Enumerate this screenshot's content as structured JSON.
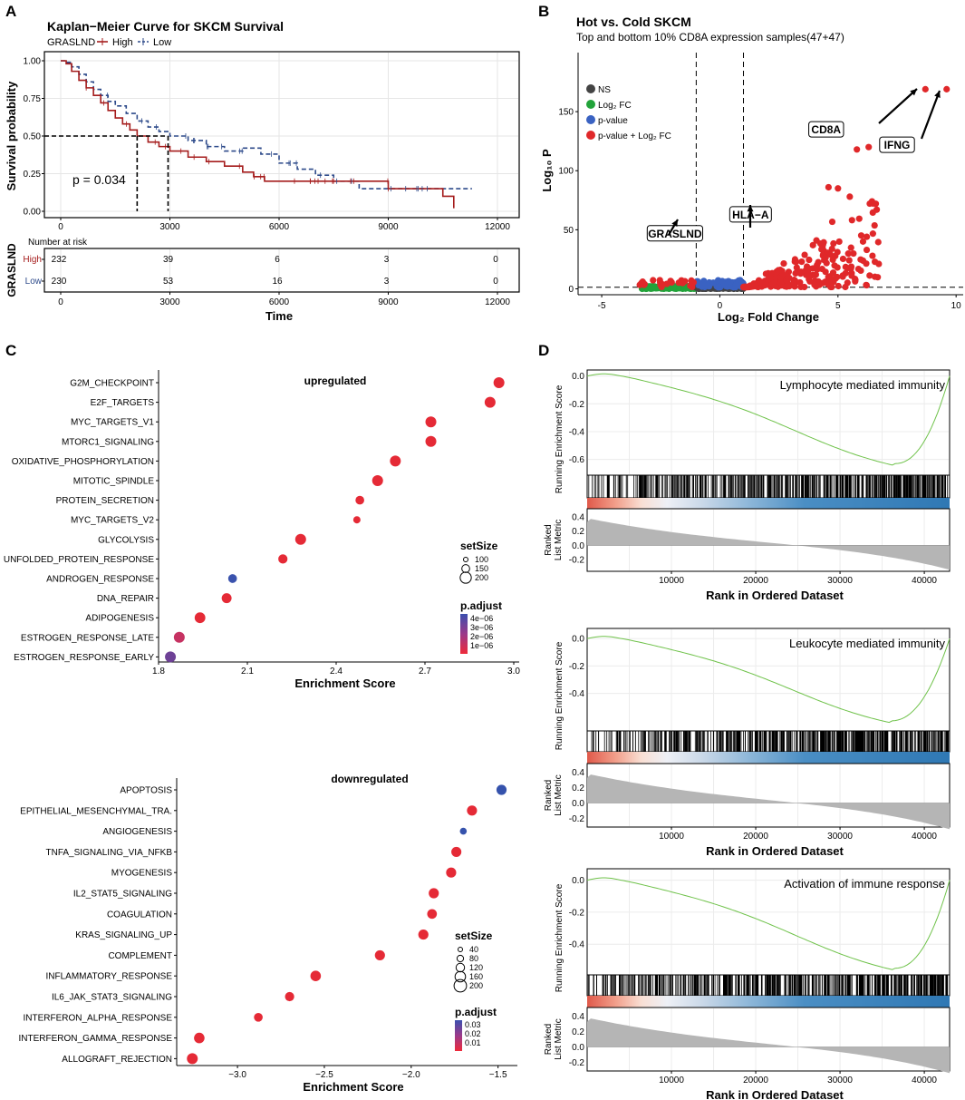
{
  "panel_labels": [
    "A",
    "B",
    "C",
    "D"
  ],
  "chart_data": [
    {
      "type": "line",
      "panel": "A",
      "title": "Kaplan−Meier Curve for SKCM Survival",
      "legend_title": "GRASLND",
      "legend": [
        "High",
        "Low"
      ],
      "xlabel": "Time",
      "ylabel": "Survival probability",
      "xlim": [
        0,
        12000
      ],
      "ylim": [
        0,
        1
      ],
      "xticks": [
        "0",
        "3000",
        "6000",
        "9000",
        "12000"
      ],
      "yticks": [
        "0.00",
        "0.25",
        "0.50",
        "0.75",
        "1.00"
      ],
      "pvalue_text": "p = 0.034",
      "median_survival": {
        "High": 2100,
        "Low": 2950
      },
      "colors": {
        "High": "#a51c1c",
        "Low": "#2d4a8a"
      },
      "series": [
        {
          "name": "High",
          "x": [
            0,
            150,
            300,
            500,
            700,
            900,
            1100,
            1300,
            1500,
            1700,
            1900,
            2100,
            2400,
            2700,
            3000,
            3500,
            4000,
            4500,
            5000,
            5300,
            5600,
            6000,
            6500,
            7000,
            7500,
            8000,
            9000,
            10000,
            10500,
            10500,
            10800
          ],
          "y": [
            1.0,
            0.98,
            0.93,
            0.87,
            0.82,
            0.77,
            0.72,
            0.67,
            0.62,
            0.58,
            0.54,
            0.5,
            0.46,
            0.43,
            0.4,
            0.36,
            0.33,
            0.3,
            0.26,
            0.23,
            0.2,
            0.2,
            0.2,
            0.2,
            0.2,
            0.2,
            0.15,
            0.15,
            0.15,
            0.1,
            0.02
          ]
        },
        {
          "name": "Low",
          "x": [
            0,
            150,
            300,
            500,
            700,
            900,
            1100,
            1300,
            1500,
            1800,
            2100,
            2400,
            2700,
            3000,
            3500,
            4000,
            4500,
            5000,
            5500,
            6000,
            6500,
            7000,
            7500,
            8000,
            8200,
            9000,
            10000,
            11000,
            11300
          ],
          "y": [
            1.0,
            0.99,
            0.96,
            0.91,
            0.86,
            0.81,
            0.77,
            0.73,
            0.7,
            0.65,
            0.6,
            0.56,
            0.53,
            0.5,
            0.47,
            0.43,
            0.4,
            0.42,
            0.38,
            0.32,
            0.28,
            0.24,
            0.2,
            0.2,
            0.15,
            0.15,
            0.15,
            0.15,
            0.15
          ]
        }
      ],
      "risk_table": {
        "title": "Number at risk",
        "group_label": "GRASLND",
        "rows": [
          {
            "name": "High",
            "values": [
              "232",
              "39",
              "6",
              "3",
              "0"
            ]
          },
          {
            "name": "Low",
            "values": [
              "230",
              "53",
              "16",
              "3",
              "0"
            ]
          }
        ]
      }
    },
    {
      "type": "scatter",
      "panel": "B",
      "title": "Hot vs. Cold SKCM",
      "subtitle": "Top and bottom 10% CD8A expression samples(47+47)",
      "xlabel": "Log₂ Fold Change",
      "ylabel": "Log₁₀ P",
      "xlim": [
        -6,
        10.3
      ],
      "ylim": [
        -5,
        200
      ],
      "xticks": [
        "-5",
        "0",
        "5",
        "10"
      ],
      "yticks": [
        "0",
        "50",
        "100",
        "150"
      ],
      "cutoffs": {
        "fc": [
          -1,
          1
        ],
        "p": 1.3
      },
      "legend": [
        "NS",
        "Log₂ FC",
        "p-value",
        "p-value + Log₂ FC"
      ],
      "legend_colors": [
        "#444444",
        "#22a33a",
        "#3a62c2",
        "#e0282a"
      ],
      "annotations": [
        {
          "label": "CD8A",
          "x": 4.5,
          "y": 135,
          "arrow_to": [
            7.8,
            168
          ]
        },
        {
          "label": "IFNG",
          "x": 7.5,
          "y": 122,
          "arrow_to": [
            8.8,
            168
          ]
        },
        {
          "label": "HLA−A",
          "x": 1.3,
          "y": 63,
          "arrow_to": [
            1.3,
            50
          ]
        },
        {
          "label": "GRASLND",
          "x": -1.9,
          "y": 47,
          "arrow_to": [
            -1.4,
            38
          ]
        }
      ]
    },
    {
      "type": "scatter",
      "panel": "C",
      "title": "upregulated",
      "xlabel": "Enrichment Score",
      "xlim": [
        1.8,
        3.0
      ],
      "xticks": [
        "1.8",
        "2.1",
        "2.4",
        "2.7",
        "3.0"
      ],
      "categories": [
        "G2M_CHECKPOINT",
        "E2F_TARGETS",
        "MYC_TARGETS_V1",
        "MTORC1_SIGNALING",
        "OXIDATIVE_PHOSPHORYLATION",
        "MITOTIC_SPINDLE",
        "PROTEIN_SECRETION",
        "MYC_TARGETS_V2",
        "GLYCOLYSIS",
        "UNFOLDED_PROTEIN_RESPONSE",
        "ANDROGEN_RESPONSE",
        "DNA_REPAIR",
        "ADIPOGENESIS",
        "ESTROGEN_RESPONSE_LATE",
        "ESTROGEN_RESPONSE_EARLY"
      ],
      "values": [
        2.95,
        2.92,
        2.72,
        2.72,
        2.6,
        2.54,
        2.48,
        2.47,
        2.28,
        2.22,
        2.05,
        2.03,
        1.94,
        1.87,
        1.84
      ],
      "set_size": [
        200,
        200,
        200,
        200,
        200,
        200,
        100,
        50,
        200,
        120,
        100,
        150,
        190,
        200,
        200
      ],
      "p_adjust_color": [
        "#e52a36",
        "#e52a36",
        "#e52a36",
        "#e52a36",
        "#e52a36",
        "#e52a36",
        "#e52a36",
        "#e52a36",
        "#e52a36",
        "#e52a36",
        "#3a52ad",
        "#e52a36",
        "#e52a36",
        "#c63262",
        "#6e4196"
      ],
      "legend_size_title": "setSize",
      "legend_size_labels": [
        "100",
        "150",
        "200"
      ],
      "legend_color_title": "p.adjust",
      "legend_color_labels": [
        "4e−06",
        "3e−06",
        "2e−06",
        "1e−06"
      ]
    },
    {
      "type": "scatter",
      "panel": "C",
      "title": "downregulated",
      "xlabel": "Enrichment Score",
      "xlim": [
        -3.35,
        -1.42
      ],
      "xticks": [
        "−3.0",
        "−2.5",
        "−2.0",
        "−1.5"
      ],
      "categories": [
        "APOPTOSIS",
        "EPITHELIAL_MESENCHYMAL_TRA.",
        "ANGIOGENESIS",
        "TNFA_SIGNALING_VIA_NFKB",
        "MYOGENESIS",
        "IL2_STAT5_SIGNALING",
        "COAGULATION",
        "KRAS_SIGNALING_UP",
        "COMPLEMENT",
        "INFLAMMATORY_RESPONSE",
        "IL6_JAK_STAT3_SIGNALING",
        "INTERFERON_ALPHA_RESPONSE",
        "INTERFERON_GAMMA_RESPONSE",
        "ALLOGRAFT_REJECTION"
      ],
      "values": [
        -1.48,
        -1.65,
        -1.7,
        -1.74,
        -1.77,
        -1.87,
        -1.88,
        -1.93,
        -2.18,
        -2.55,
        -2.7,
        -2.88,
        -3.22,
        -3.26
      ],
      "set_size": [
        160,
        160,
        40,
        160,
        160,
        160,
        140,
        160,
        160,
        180,
        120,
        100,
        180,
        200
      ],
      "p_adjust_color": [
        "#3552ac",
        "#e52a36",
        "#3552ac",
        "#e52a36",
        "#e52a36",
        "#e52a36",
        "#e52a36",
        "#e52a36",
        "#e52a36",
        "#e52a36",
        "#e52a36",
        "#e52a36",
        "#e52a36",
        "#e52a36"
      ],
      "legend_size_title": "setSize",
      "legend_size_labels": [
        "40",
        "80",
        "120",
        "160",
        "200"
      ],
      "legend_color_title": "p.adjust",
      "legend_color_labels": [
        "0.03",
        "0.02",
        "0.01"
      ]
    },
    {
      "type": "line",
      "panel": "D",
      "title": "Lymphocyte mediated immunity",
      "ylabel": "Running Enrichment Score",
      "ylabel2": "Ranked List Metric",
      "xlabel": "Rank in Ordered Dataset",
      "xlim": [
        0,
        43000
      ],
      "ylim": [
        -0.7,
        0.03
      ],
      "yticks": [
        "0.0",
        "-0.2",
        "-0.4",
        "-0.6"
      ],
      "ytick_values": [
        0.0,
        -0.2,
        -0.4,
        -0.6
      ],
      "metric_ylim": [
        -0.35,
        0.5
      ],
      "metric_yticks": [
        "0.4",
        "0.2",
        "0.0",
        "-0.2"
      ],
      "xticks": [
        "10000",
        "20000",
        "30000",
        "40000"
      ],
      "min_es": -0.63,
      "min_rank": 36500
    },
    {
      "type": "line",
      "panel": "D",
      "title": "Leukocyte mediated immunity",
      "ylabel": "Running Enrichment Score",
      "ylabel2": "Ranked List Metric",
      "xlabel": "Rank in Ordered Dataset",
      "xlim": [
        0,
        43000
      ],
      "ylim": [
        -0.66,
        0.06
      ],
      "yticks": [
        "0.0",
        "-0.2",
        "-0.4"
      ],
      "ytick_values": [
        0.0,
        -0.2,
        -0.4
      ],
      "metric_ylim": [
        -0.3,
        0.5
      ],
      "metric_yticks": [
        "0.4",
        "0.2",
        "0.0",
        "-0.2"
      ],
      "xticks": [
        "10000",
        "20000",
        "30000",
        "40000"
      ],
      "min_es": -0.6,
      "min_rank": 36000
    },
    {
      "type": "line",
      "panel": "D",
      "title": "Activation of immune response",
      "ylabel": "Running Enrichment Score",
      "ylabel2": "Ranked List Metric",
      "xlabel": "Rank in Ordered Dataset",
      "xlim": [
        0,
        43000
      ],
      "ylim": [
        -0.58,
        0.06
      ],
      "yticks": [
        "0.0",
        "-0.2",
        "-0.4"
      ],
      "ytick_values": [
        0.0,
        -0.2,
        -0.4
      ],
      "metric_ylim": [
        -0.3,
        0.5
      ],
      "metric_yticks": [
        "0.4",
        "0.2",
        "0.0",
        "-0.2"
      ],
      "xticks": [
        "10000",
        "20000",
        "30000",
        "40000"
      ],
      "min_es": -0.55,
      "min_rank": 36500
    }
  ]
}
